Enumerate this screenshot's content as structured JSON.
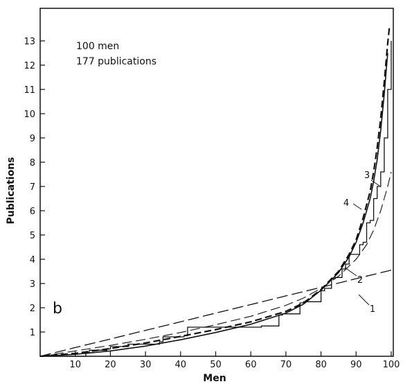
{
  "chart_data": {
    "type": "line",
    "panel_label": "b",
    "annotations": [
      "100 men",
      "177 publications"
    ],
    "xlabel": "Men",
    "ylabel": "Publications",
    "xlim": [
      0,
      100
    ],
    "ylim": [
      0,
      14
    ],
    "xticks": [
      "10",
      "20",
      "30",
      "40",
      "50",
      "60",
      "70",
      "80",
      "90",
      "100"
    ],
    "yticks": [
      "1",
      "2",
      "3",
      "4",
      "5",
      "6",
      "7",
      "8",
      "9",
      "10",
      "11",
      "12",
      "13"
    ],
    "grid": false,
    "step_data": {
      "x": [
        0,
        13,
        14,
        19,
        20,
        25,
        34,
        35,
        41,
        42,
        62,
        63,
        68,
        69,
        74,
        75,
        80,
        81,
        83,
        84,
        86,
        87,
        88,
        91,
        92,
        93,
        94,
        95,
        96,
        97,
        98,
        99,
        100
      ],
      "y": [
        0,
        0.15,
        0.25,
        0.3,
        0.4,
        0.5,
        0.6,
        0.8,
        0.85,
        1.2,
        1.2,
        1.25,
        1.7,
        1.75,
        2.2,
        2.25,
        2.7,
        2.8,
        3.2,
        3.25,
        3.6,
        3.8,
        4.2,
        4.6,
        4.7,
        5.5,
        5.6,
        6.5,
        7.0,
        7.6,
        9.0,
        11.0,
        13.0
      ]
    },
    "series": [
      {
        "name": "1",
        "style": "long-dash",
        "x": [
          0,
          10,
          20,
          30,
          40,
          50,
          60,
          70,
          80,
          90,
          100
        ],
        "y": [
          0,
          0.36,
          0.71,
          1.07,
          1.42,
          1.78,
          2.13,
          2.49,
          2.84,
          3.2,
          3.55
        ]
      },
      {
        "name": "2",
        "style": "thin-dash",
        "x": [
          0,
          10,
          20,
          30,
          40,
          50,
          60,
          70,
          75,
          80,
          85,
          90,
          93,
          95,
          97,
          99,
          100
        ],
        "y": [
          0,
          0.22,
          0.45,
          0.7,
          0.98,
          1.3,
          1.65,
          2.1,
          2.4,
          2.8,
          3.3,
          4.0,
          4.6,
          5.2,
          6.0,
          7.0,
          7.6
        ]
      },
      {
        "name": "3",
        "style": "dash",
        "x": [
          0,
          10,
          20,
          30,
          40,
          50,
          60,
          70,
          75,
          80,
          85,
          88,
          90,
          92,
          94,
          95,
          96,
          97,
          98,
          99,
          99.5
        ],
        "y": [
          0,
          0.12,
          0.32,
          0.55,
          0.82,
          1.1,
          1.42,
          1.85,
          2.2,
          2.75,
          3.5,
          4.2,
          4.8,
          5.7,
          6.8,
          7.6,
          8.6,
          9.8,
          11.3,
          12.9,
          13.6
        ]
      },
      {
        "name": "4",
        "style": "solid",
        "x": [
          0,
          10,
          20,
          30,
          40,
          50,
          60,
          70,
          75,
          80,
          85,
          88,
          90,
          92,
          94,
          95,
          96,
          97,
          98,
          99
        ],
        "y": [
          0,
          0.08,
          0.22,
          0.42,
          0.68,
          0.98,
          1.32,
          1.78,
          2.15,
          2.72,
          3.45,
          4.1,
          4.7,
          5.5,
          6.5,
          7.2,
          8.1,
          9.3,
          10.8,
          12.5
        ]
      }
    ]
  }
}
